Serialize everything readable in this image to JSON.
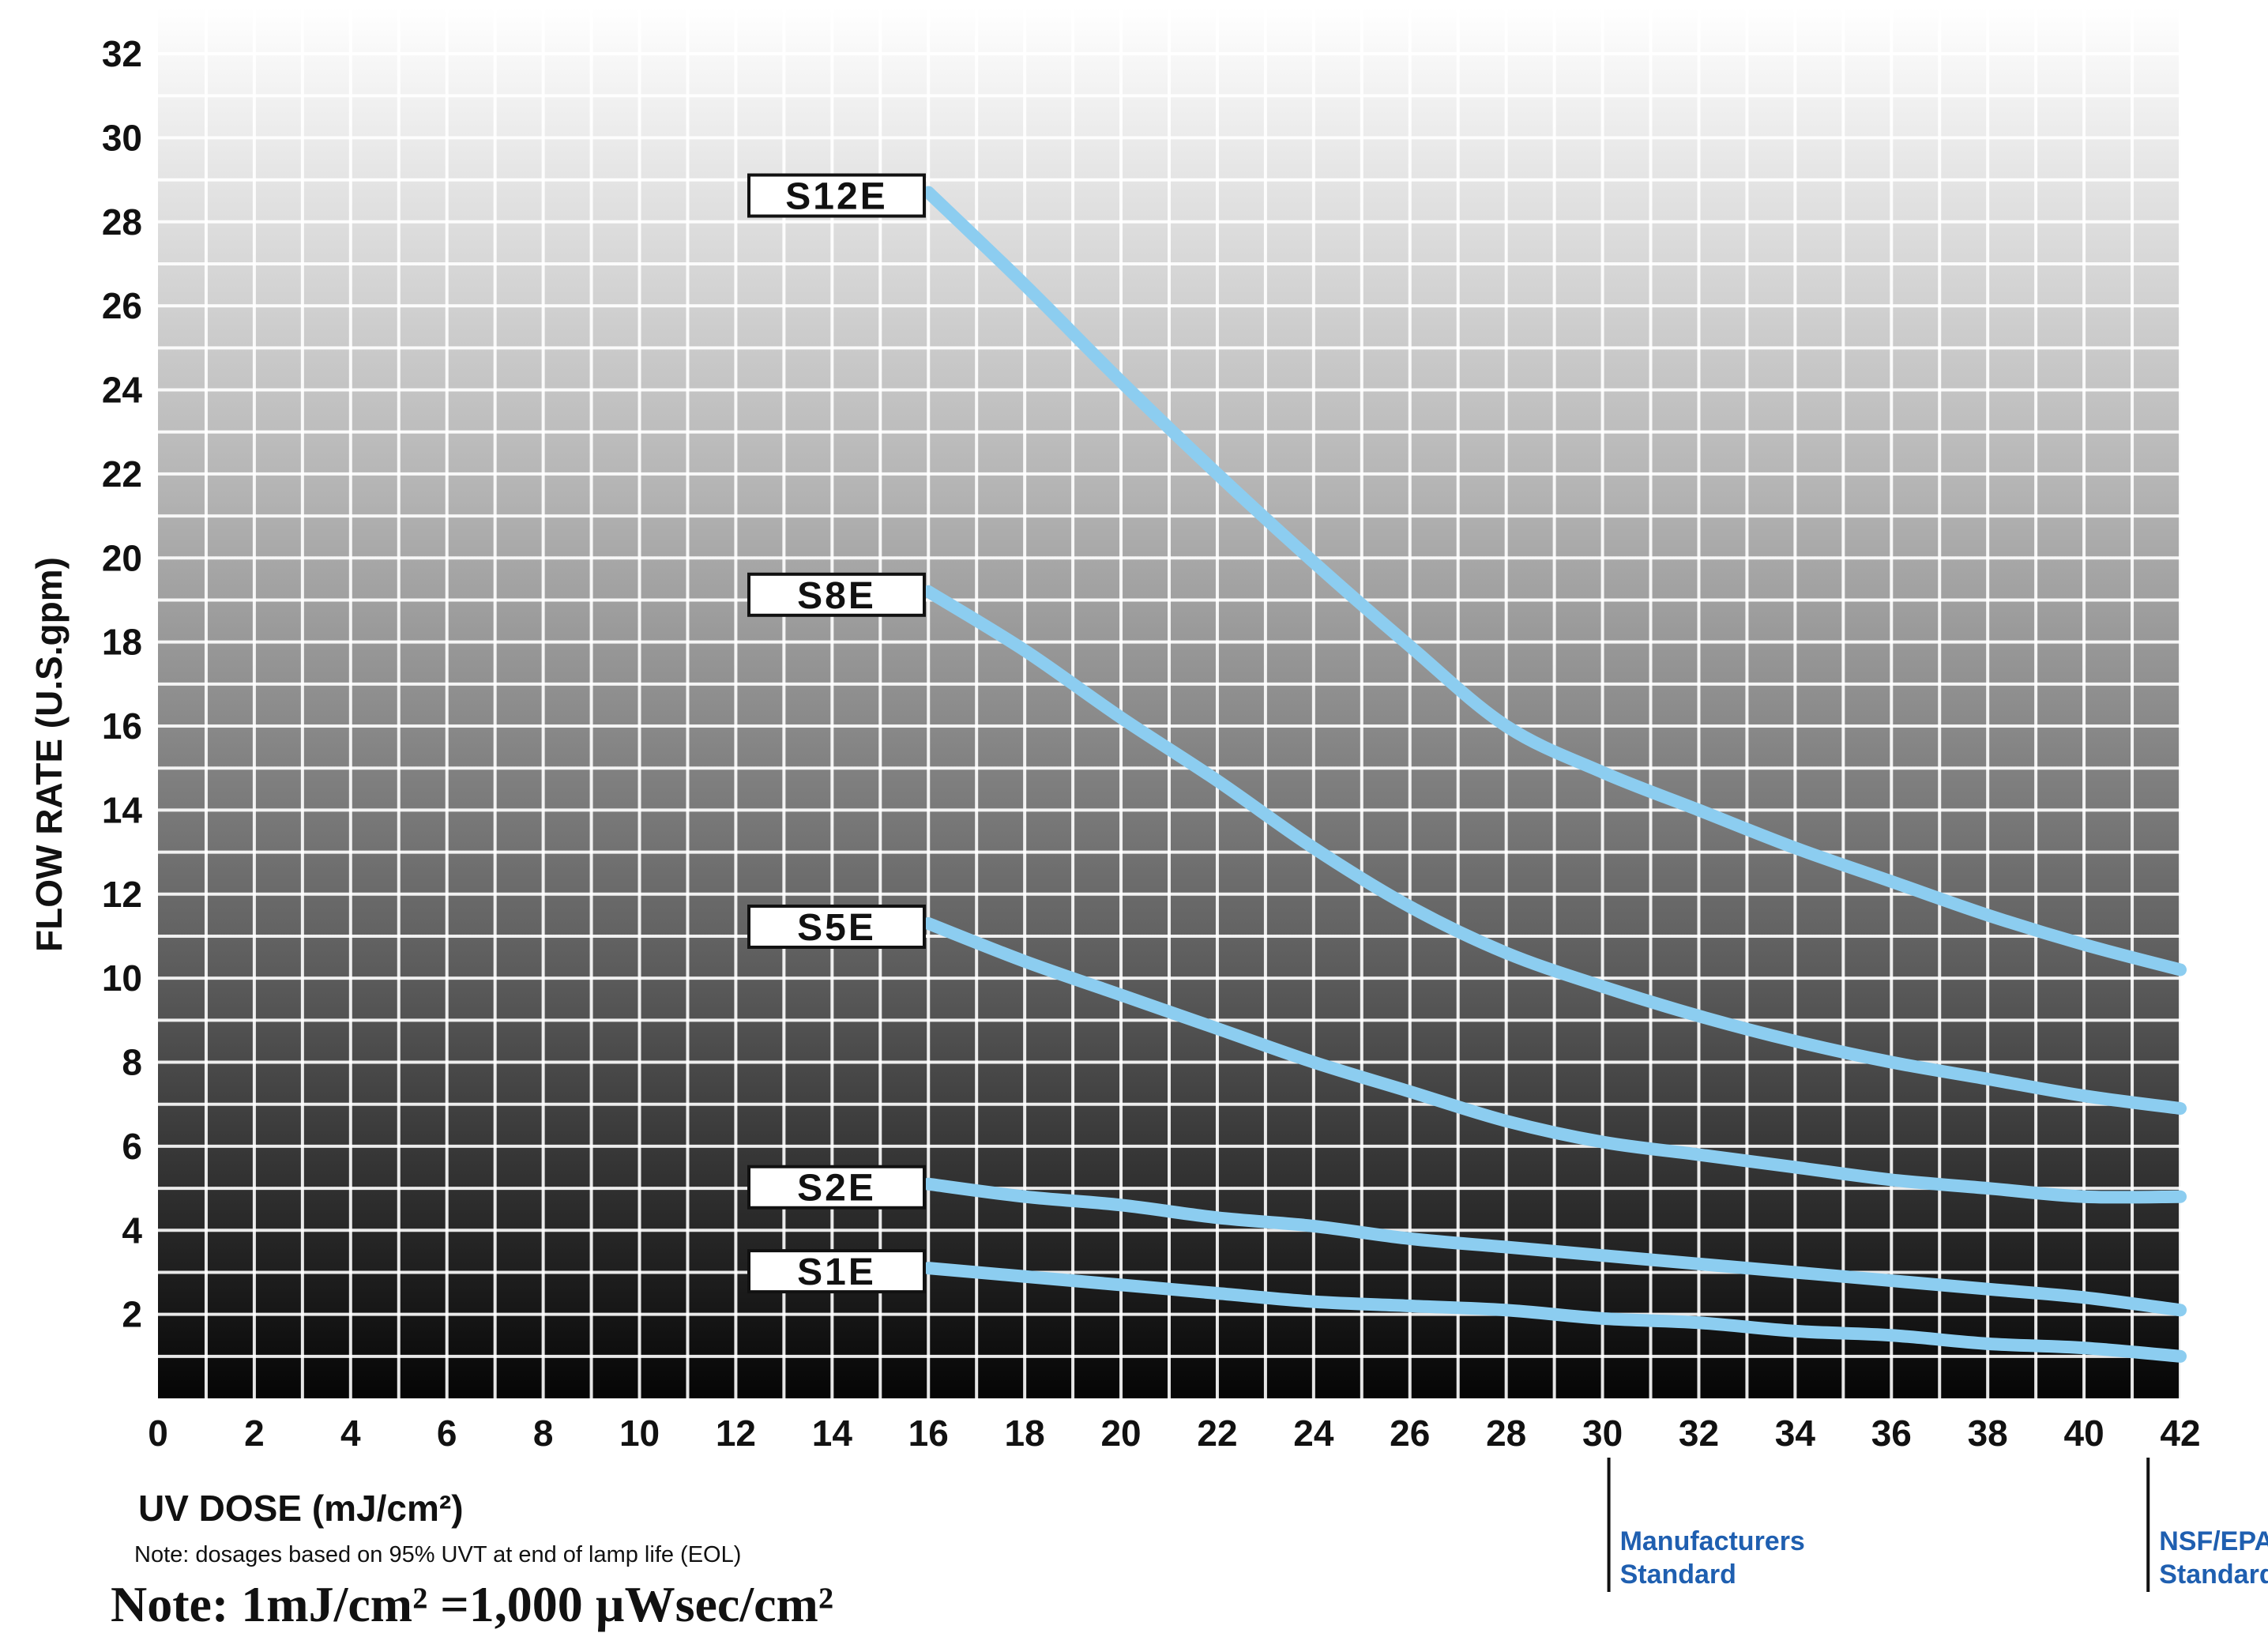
{
  "chart_data": {
    "type": "line",
    "xlabel": "UV DOSE (mJ/cm²)",
    "ylabel": "FLOW RATE (U.S.gpm)",
    "xlim": [
      0,
      42
    ],
    "ylim": [
      0,
      32
    ],
    "x_ticks": [
      "0",
      "2",
      "4",
      "6",
      "8",
      "10",
      "12",
      "14",
      "16",
      "18",
      "20",
      "22",
      "24",
      "26",
      "28",
      "30",
      "32",
      "34",
      "36",
      "38",
      "40",
      "42"
    ],
    "y_ticks": [
      "2",
      "4",
      "6",
      "8",
      "10",
      "12",
      "14",
      "16",
      "18",
      "20",
      "22",
      "24",
      "26",
      "28",
      "30",
      "32"
    ],
    "grid": true,
    "background": "vertical gradient white to black",
    "line_color": "#8ccdf0",
    "series": [
      {
        "name": "S12E",
        "x": [
          16,
          18,
          20,
          22,
          24,
          26,
          28,
          30,
          32,
          34,
          36,
          38,
          40,
          42
        ],
        "y": [
          28.7,
          26.5,
          24.2,
          22.0,
          19.9,
          17.9,
          16.0,
          14.9,
          14.0,
          13.1,
          12.3,
          11.5,
          10.8,
          10.2
        ]
      },
      {
        "name": "S8E",
        "x": [
          16,
          18,
          20,
          22,
          24,
          26,
          28,
          30,
          32,
          34,
          36,
          38,
          40,
          42
        ],
        "y": [
          19.2,
          17.8,
          16.2,
          14.7,
          13.1,
          11.7,
          10.6,
          9.8,
          9.1,
          8.5,
          8.0,
          7.6,
          7.2,
          6.9
        ]
      },
      {
        "name": "S5E",
        "x": [
          16,
          18,
          20,
          22,
          24,
          26,
          28,
          30,
          32,
          34,
          36,
          38,
          40,
          42
        ],
        "y": [
          11.3,
          10.4,
          9.6,
          8.8,
          8.0,
          7.3,
          6.6,
          6.1,
          5.8,
          5.5,
          5.2,
          5.0,
          4.8,
          4.8
        ]
      },
      {
        "name": "S2E",
        "x": [
          16,
          18,
          20,
          22,
          24,
          26,
          28,
          30,
          32,
          34,
          36,
          38,
          40,
          42
        ],
        "y": [
          5.1,
          4.8,
          4.6,
          4.3,
          4.1,
          3.8,
          3.6,
          3.4,
          3.2,
          3.0,
          2.8,
          2.6,
          2.4,
          2.1
        ]
      },
      {
        "name": "S1E",
        "x": [
          16,
          18,
          20,
          22,
          24,
          26,
          28,
          30,
          32,
          34,
          36,
          38,
          40,
          42
        ],
        "y": [
          3.1,
          2.9,
          2.7,
          2.5,
          2.3,
          2.2,
          2.1,
          1.9,
          1.8,
          1.6,
          1.5,
          1.3,
          1.2,
          1.0
        ]
      }
    ],
    "reference_lines": [
      {
        "x": 30,
        "label_line1": "Manufacturers",
        "label_line2": "Standard",
        "color": "#1f5fb0"
      },
      {
        "x": 41.2,
        "label_line1": "NSF/EPA",
        "label_line2": "Standard",
        "color": "#1f5fb0"
      }
    ]
  },
  "notes": {
    "small": "Note: dosages based on 95% UVT at end of lamp life (EOL)",
    "big": "Note: 1mJ/cm² =1,000 µWsec/cm²"
  }
}
